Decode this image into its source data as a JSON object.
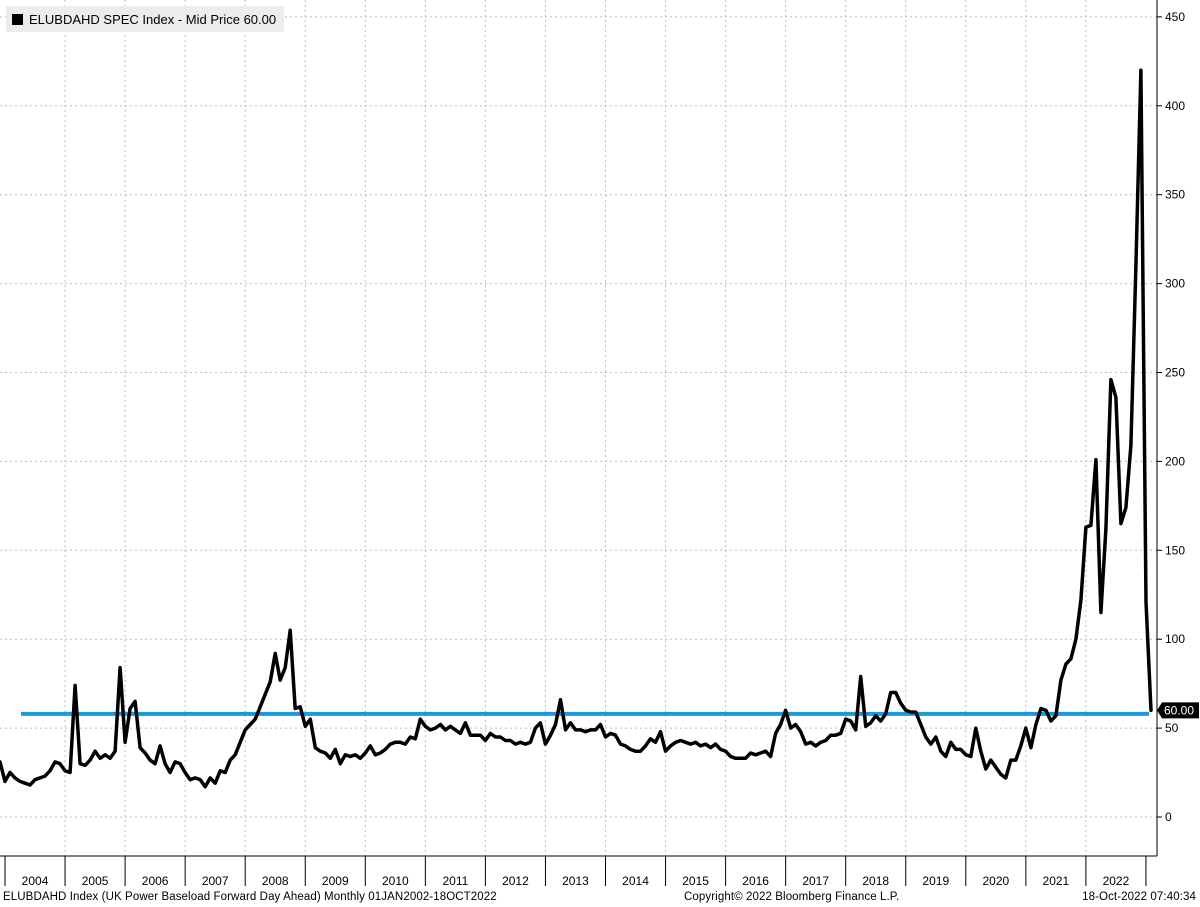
{
  "legend": {
    "label": "ELUBDAHD SPEC Index - Mid Price 60.00",
    "swatch_color": "#000000"
  },
  "last_price_tag": "60.00",
  "footer": {
    "left": "ELUBDAHD Index (UK Power Baseload Forward Day Ahead)  Monthly 01JAN2002-18OCT2022",
    "middle": "Copyright© 2022 Bloomberg Finance L.P.",
    "right": "18-Oct-2022 07:40:34"
  },
  "chart_data": {
    "type": "line",
    "title": "",
    "xlabel": "",
    "ylabel": "",
    "ylim": [
      -20,
      455
    ],
    "y_ticks": [
      "0",
      "50",
      "100",
      "150",
      "200",
      "250",
      "300",
      "350",
      "400",
      "450"
    ],
    "x_ticks": [
      "2004",
      "2005",
      "2006",
      "2007",
      "2008",
      "2009",
      "2010",
      "2011",
      "2012",
      "2013",
      "2014",
      "2015",
      "2016",
      "2017",
      "2018",
      "2019",
      "2020",
      "2021",
      "2022"
    ],
    "grid": true,
    "y_axis_side": "right",
    "series": [
      {
        "name": "ELUBDAHD SPEC Index",
        "color": "#000000",
        "points": [
          [
            "2003-12",
            31
          ],
          [
            "2004-01",
            20
          ],
          [
            "2004-02",
            25
          ],
          [
            "2004-03",
            22
          ],
          [
            "2004-04",
            20
          ],
          [
            "2004-05",
            19
          ],
          [
            "2004-06",
            18
          ],
          [
            "2004-07",
            21
          ],
          [
            "2004-08",
            22
          ],
          [
            "2004-09",
            23
          ],
          [
            "2004-10",
            26
          ],
          [
            "2004-11",
            31
          ],
          [
            "2004-12",
            30
          ],
          [
            "2005-01",
            26
          ],
          [
            "2005-02",
            25
          ],
          [
            "2005-03",
            74
          ],
          [
            "2005-04",
            30
          ],
          [
            "2005-05",
            29
          ],
          [
            "2005-06",
            32
          ],
          [
            "2005-07",
            37
          ],
          [
            "2005-08",
            33
          ],
          [
            "2005-09",
            35
          ],
          [
            "2005-10",
            33
          ],
          [
            "2005-11",
            37
          ],
          [
            "2005-12",
            84
          ],
          [
            "2006-01",
            42
          ],
          [
            "2006-02",
            61
          ],
          [
            "2006-03",
            65
          ],
          [
            "2006-04",
            39
          ],
          [
            "2006-05",
            36
          ],
          [
            "2006-06",
            32
          ],
          [
            "2006-07",
            30
          ],
          [
            "2006-08",
            40
          ],
          [
            "2006-09",
            30
          ],
          [
            "2006-10",
            25
          ],
          [
            "2006-11",
            31
          ],
          [
            "2006-12",
            30
          ],
          [
            "2007-01",
            25
          ],
          [
            "2007-02",
            21
          ],
          [
            "2007-03",
            22
          ],
          [
            "2007-04",
            21
          ],
          [
            "2007-05",
            17
          ],
          [
            "2007-06",
            22
          ],
          [
            "2007-07",
            19
          ],
          [
            "2007-08",
            26
          ],
          [
            "2007-09",
            25
          ],
          [
            "2007-10",
            32
          ],
          [
            "2007-11",
            35
          ],
          [
            "2007-12",
            42
          ],
          [
            "2008-01",
            49
          ],
          [
            "2008-02",
            52
          ],
          [
            "2008-03",
            55
          ],
          [
            "2008-04",
            62
          ],
          [
            "2008-05",
            69
          ],
          [
            "2008-06",
            76
          ],
          [
            "2008-07",
            92
          ],
          [
            "2008-08",
            77
          ],
          [
            "2008-09",
            84
          ],
          [
            "2008-10",
            105
          ],
          [
            "2008-11",
            61
          ],
          [
            "2008-12",
            62
          ],
          [
            "2009-01",
            51
          ],
          [
            "2009-02",
            55
          ],
          [
            "2009-03",
            39
          ],
          [
            "2009-04",
            37
          ],
          [
            "2009-05",
            36
          ],
          [
            "2009-06",
            33
          ],
          [
            "2009-07",
            38
          ],
          [
            "2009-08",
            30
          ],
          [
            "2009-09",
            35
          ],
          [
            "2009-10",
            34
          ],
          [
            "2009-11",
            35
          ],
          [
            "2009-12",
            33
          ],
          [
            "2010-01",
            36
          ],
          [
            "2010-02",
            40
          ],
          [
            "2010-03",
            35
          ],
          [
            "2010-04",
            36
          ],
          [
            "2010-05",
            38
          ],
          [
            "2010-06",
            41
          ],
          [
            "2010-07",
            42
          ],
          [
            "2010-08",
            42
          ],
          [
            "2010-09",
            41
          ],
          [
            "2010-10",
            45
          ],
          [
            "2010-11",
            44
          ],
          [
            "2010-12",
            55
          ],
          [
            "2011-01",
            51
          ],
          [
            "2011-02",
            49
          ],
          [
            "2011-03",
            50
          ],
          [
            "2011-04",
            52
          ],
          [
            "2011-05",
            49
          ],
          [
            "2011-06",
            51
          ],
          [
            "2011-07",
            49
          ],
          [
            "2011-08",
            47
          ],
          [
            "2011-09",
            53
          ],
          [
            "2011-10",
            46
          ],
          [
            "2011-11",
            46
          ],
          [
            "2011-12",
            46
          ],
          [
            "2012-01",
            43
          ],
          [
            "2012-02",
            47
          ],
          [
            "2012-03",
            45
          ],
          [
            "2012-04",
            45
          ],
          [
            "2012-05",
            43
          ],
          [
            "2012-06",
            43
          ],
          [
            "2012-07",
            41
          ],
          [
            "2012-08",
            42
          ],
          [
            "2012-09",
            41
          ],
          [
            "2012-10",
            42
          ],
          [
            "2012-11",
            50
          ],
          [
            "2012-12",
            53
          ],
          [
            "2013-01",
            41
          ],
          [
            "2013-02",
            46
          ],
          [
            "2013-03",
            52
          ],
          [
            "2013-04",
            66
          ],
          [
            "2013-05",
            49
          ],
          [
            "2013-06",
            53
          ],
          [
            "2013-07",
            49
          ],
          [
            "2013-08",
            49
          ],
          [
            "2013-09",
            48
          ],
          [
            "2013-10",
            49
          ],
          [
            "2013-11",
            49
          ],
          [
            "2013-12",
            52
          ],
          [
            "2014-01",
            45
          ],
          [
            "2014-02",
            47
          ],
          [
            "2014-03",
            46
          ],
          [
            "2014-04",
            41
          ],
          [
            "2014-05",
            40
          ],
          [
            "2014-06",
            38
          ],
          [
            "2014-07",
            37
          ],
          [
            "2014-08",
            37
          ],
          [
            "2014-09",
            40
          ],
          [
            "2014-10",
            44
          ],
          [
            "2014-11",
            42
          ],
          [
            "2014-12",
            48
          ],
          [
            "2015-01",
            37
          ],
          [
            "2015-02",
            40
          ],
          [
            "2015-03",
            42
          ],
          [
            "2015-04",
            43
          ],
          [
            "2015-05",
            42
          ],
          [
            "2015-06",
            41
          ],
          [
            "2015-07",
            42
          ],
          [
            "2015-08",
            40
          ],
          [
            "2015-09",
            41
          ],
          [
            "2015-10",
            39
          ],
          [
            "2015-11",
            41
          ],
          [
            "2015-12",
            38
          ],
          [
            "2016-01",
            37
          ],
          [
            "2016-02",
            34
          ],
          [
            "2016-03",
            33
          ],
          [
            "2016-04",
            33
          ],
          [
            "2016-05",
            33
          ],
          [
            "2016-06",
            36
          ],
          [
            "2016-07",
            35
          ],
          [
            "2016-08",
            36
          ],
          [
            "2016-09",
            37
          ],
          [
            "2016-10",
            34
          ],
          [
            "2016-11",
            47
          ],
          [
            "2016-12",
            52
          ],
          [
            "2017-01",
            60
          ],
          [
            "2017-02",
            50
          ],
          [
            "2017-03",
            52
          ],
          [
            "2017-04",
            48
          ],
          [
            "2017-05",
            41
          ],
          [
            "2017-06",
            42
          ],
          [
            "2017-07",
            40
          ],
          [
            "2017-08",
            42
          ],
          [
            "2017-09",
            43
          ],
          [
            "2017-10",
            46
          ],
          [
            "2017-11",
            46
          ],
          [
            "2017-12",
            47
          ],
          [
            "2018-01",
            55
          ],
          [
            "2018-02",
            54
          ],
          [
            "2018-03",
            49
          ],
          [
            "2018-04",
            79
          ],
          [
            "2018-05",
            51
          ],
          [
            "2018-06",
            53
          ],
          [
            "2018-07",
            57
          ],
          [
            "2018-08",
            54
          ],
          [
            "2018-09",
            58
          ],
          [
            "2018-10",
            70
          ],
          [
            "2018-11",
            70
          ],
          [
            "2018-12",
            64
          ],
          [
            "2019-01",
            60
          ],
          [
            "2019-02",
            59
          ],
          [
            "2019-03",
            59
          ],
          [
            "2019-04",
            52
          ],
          [
            "2019-05",
            45
          ],
          [
            "2019-06",
            41
          ],
          [
            "2019-07",
            45
          ],
          [
            "2019-08",
            37
          ],
          [
            "2019-09",
            34
          ],
          [
            "2019-10",
            42
          ],
          [
            "2019-11",
            38
          ],
          [
            "2019-12",
            38
          ],
          [
            "2020-01",
            35
          ],
          [
            "2020-02",
            34
          ],
          [
            "2020-03",
            50
          ],
          [
            "2020-04",
            37
          ],
          [
            "2020-05",
            27
          ],
          [
            "2020-06",
            32
          ],
          [
            "2020-07",
            28
          ],
          [
            "2020-08",
            24
          ],
          [
            "2020-09",
            22
          ],
          [
            "2020-10",
            32
          ],
          [
            "2020-11",
            32
          ],
          [
            "2020-12",
            40
          ],
          [
            "2021-01",
            50
          ],
          [
            "2021-02",
            39
          ],
          [
            "2021-03",
            52
          ],
          [
            "2021-04",
            61
          ],
          [
            "2021-05",
            60
          ],
          [
            "2021-06",
            54
          ],
          [
            "2021-07",
            57
          ],
          [
            "2021-08",
            77
          ],
          [
            "2021-09",
            86
          ],
          [
            "2021-10",
            89
          ],
          [
            "2021-11",
            100
          ],
          [
            "2021-12",
            122
          ],
          [
            "2022-01",
            163
          ],
          [
            "2022-02",
            164
          ],
          [
            "2022-03",
            201
          ],
          [
            "2022-04",
            115
          ],
          [
            "2022-05",
            162
          ],
          [
            "2022-06",
            246
          ],
          [
            "2022-07",
            236
          ],
          [
            "2022-08",
            165
          ],
          [
            "2022-09",
            174
          ],
          [
            "2022-10",
            209
          ],
          [
            "2022-11",
            310
          ],
          [
            "2022-12",
            420
          ],
          [
            "2023-01",
            121
          ],
          [
            "2023-02",
            60
          ]
        ]
      },
      {
        "name": "",
        "color": "#1a9bd7",
        "points": [
          [
            "2003-12",
            58
          ],
          [
            "2023-02",
            58
          ]
        ]
      }
    ]
  }
}
